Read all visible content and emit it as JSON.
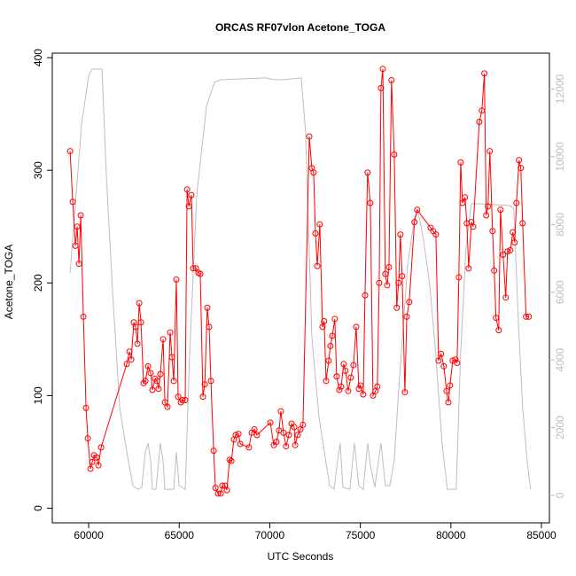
{
  "chart_data": {
    "type": "line",
    "title": "ORCAS RF07vlon Acetone_TOGA",
    "x_label": "UTC Seconds",
    "y_label": "Acetone_TOGA",
    "xlim": [
      57990,
      85440
    ],
    "ylim": [
      -13,
      404
    ],
    "y2lim": [
      -810,
      13060
    ],
    "xticks": [
      60000,
      65000,
      70000,
      75000,
      80000,
      85000
    ],
    "yticks": [
      0,
      100,
      200,
      300,
      400
    ],
    "y2ticks": [
      0,
      2000,
      4000,
      6000,
      8000,
      10000,
      12000
    ],
    "y2_color": "#bebebe",
    "series": [
      {
        "color": "#ff0000",
        "marker": "circle",
        "x": [
          58973,
          59120,
          59267,
          59364,
          59462,
          59560,
          59707,
          59853,
          59951,
          60098,
          60196,
          60293,
          60440,
          60538,
          60685,
          62100,
          62250,
          62350,
          62490,
          62590,
          62690,
          62790,
          62890,
          63030,
          63130,
          63280,
          63420,
          63520,
          63670,
          63770,
          63860,
          63960,
          64110,
          64210,
          64350,
          64500,
          64600,
          64700,
          64840,
          64940,
          65090,
          65180,
          65330,
          65430,
          65530,
          65670,
          65770,
          65920,
          66060,
          66160,
          66310,
          66410,
          66550,
          66650,
          66750,
          66900,
          67000,
          67140,
          67290,
          67380,
          67530,
          67630,
          67780,
          67880,
          68020,
          68120,
          68270,
          68370,
          68850,
          69000,
          69150,
          69290,
          70030,
          70220,
          70370,
          70510,
          70610,
          70760,
          70900,
          71050,
          71200,
          71350,
          71400,
          71540,
          71690,
          71830,
          72180,
          72320,
          72420,
          72520,
          72620,
          72760,
          72910,
          73000,
          73110,
          73250,
          73350,
          73450,
          73590,
          73690,
          73840,
          73940,
          74080,
          74180,
          74330,
          74470,
          74620,
          74770,
          74920,
          75010,
          75160,
          75260,
          75400,
          75550,
          75700,
          75840,
          75940,
          76040,
          76140,
          76240,
          76380,
          76480,
          76580,
          76720,
          76870,
          77010,
          77110,
          77210,
          77310,
          77460,
          77560,
          77700,
          77990,
          78140,
          78880,
          79020,
          79170,
          79320,
          79460,
          79610,
          79760,
          79860,
          79950,
          80100,
          80250,
          80340,
          80440,
          80540,
          80640,
          80780,
          80880,
          80980,
          81130,
          81230,
          81570,
          81710,
          81850,
          81950,
          82050,
          82150,
          82300,
          82390,
          82490,
          82640,
          82740,
          82880,
          83030,
          83130,
          83280,
          83420,
          83520,
          83620,
          83760,
          83860,
          83960,
          84150,
          84300
        ],
        "values": [
          317,
          272,
          233,
          250,
          217,
          260,
          170,
          89,
          62,
          35,
          41,
          47,
          45,
          38,
          54,
          128,
          139,
          132,
          165,
          161,
          146,
          182,
          165,
          111,
          113,
          126,
          120,
          105,
          115,
          113,
          106,
          119,
          150,
          94,
          90,
          156,
          134,
          113,
          203,
          99,
          94,
          96,
          96,
          283,
          268,
          278,
          213,
          213,
          209,
          208,
          99,
          110,
          178,
          161,
          113,
          51,
          18,
          13,
          13,
          20,
          20,
          16,
          43,
          42,
          61,
          65,
          66,
          57,
          54,
          67,
          70,
          65,
          76,
          56,
          59,
          69,
          86,
          67,
          55,
          65,
          75,
          72,
          56,
          65,
          70,
          74,
          330,
          302,
          298,
          244,
          215,
          252,
          161,
          166,
          113,
          131,
          144,
          153,
          168,
          117,
          105,
          108,
          128,
          122,
          104,
          116,
          127,
          161,
          106,
          109,
          101,
          189,
          298,
          271,
          100,
          104,
          108,
          200,
          373,
          390,
          208,
          198,
          214,
          380,
          314,
          178,
          200,
          243,
          206,
          103,
          170,
          183,
          254,
          265,
          249,
          246,
          243,
          131,
          137,
          126,
          104,
          94,
          109,
          131,
          132,
          129,
          205,
          307,
          271,
          276,
          253,
          213,
          254,
          250,
          343,
          353,
          386,
          260,
          268,
          317,
          246,
          211,
          169,
          158,
          265,
          225,
          187,
          228,
          229,
          245,
          236,
          271,
          309,
          302,
          253,
          170,
          170
        ]
      },
      {
        "color": "#bebebe",
        "axis": "y2",
        "x": [
          58973,
          59267,
          59609,
          60000,
          60196,
          60734,
          60978,
          61320,
          61712,
          62103,
          62445,
          62690,
          62934,
          63130,
          63276,
          63423,
          63521,
          63716,
          63961,
          64108,
          64205,
          64694,
          64841,
          64988,
          65330,
          65575,
          65966,
          66504,
          66944,
          67335,
          69780,
          70269,
          70758,
          71736,
          71981,
          72323,
          72714,
          73301,
          73545,
          73741,
          73888,
          74034,
          74426,
          74670,
          74915,
          75159,
          75404,
          75550,
          75795,
          76137,
          76382,
          76626,
          76871,
          77116,
          77604,
          77995,
          78191,
          78484,
          78827,
          79169,
          79511,
          79805,
          80294,
          80538,
          80831,
          81125,
          81516,
          83228,
          83472,
          83717,
          83961,
          84206,
          84401
        ],
        "values": [
          6571,
          8613,
          10969,
          12409,
          12592,
          12592,
          9399,
          5995,
          2592,
          1283,
          288,
          183,
          236,
          1283,
          1545,
          1021,
          183,
          183,
          1545,
          1021,
          183,
          183,
          1283,
          288,
          183,
          4163,
          8875,
          11493,
          12200,
          12278,
          12331,
          12278,
          12278,
          12331,
          10708,
          4686,
          2330,
          288,
          183,
          1021,
          1545,
          236,
          183,
          1545,
          288,
          183,
          1545,
          890,
          236,
          1545,
          288,
          288,
          1021,
          3115,
          6781,
          8221,
          8351,
          7566,
          6257,
          4163,
          1545,
          183,
          183,
          4163,
          7304,
          8613,
          8613,
          8561,
          8482,
          5210,
          2592,
          1021,
          183
        ]
      }
    ]
  }
}
